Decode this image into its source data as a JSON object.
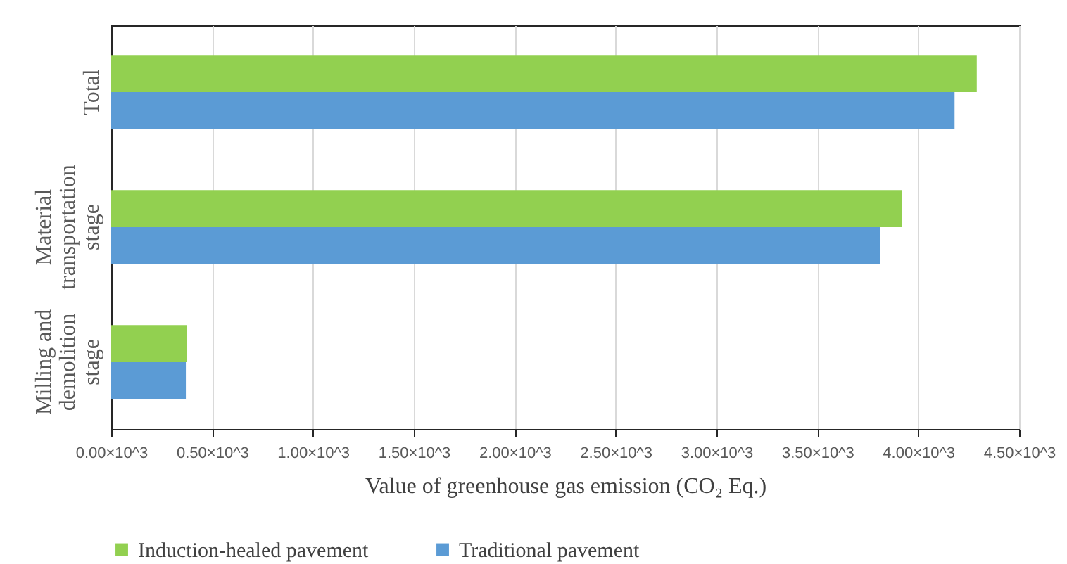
{
  "chart_data": {
    "type": "bar",
    "orientation": "horizontal",
    "xlabel": "Value of greenhouse gas emission (CO₂ Eq.)",
    "categories": [
      "Total",
      "Material transportation stage",
      "Milling and demolition stage"
    ],
    "series": [
      {
        "name": "Induction-healed pavement",
        "color": "#92d050",
        "values": [
          4290,
          3920,
          375
        ]
      },
      {
        "name": "Traditional pavement",
        "color": "#5b9bd5",
        "values": [
          4180,
          3810,
          370
        ]
      }
    ],
    "xlim": [
      0,
      4500
    ],
    "xticks": [
      {
        "value": 0,
        "label": "0.00×10^3"
      },
      {
        "value": 500,
        "label": "0.50×10^3"
      },
      {
        "value": 1000,
        "label": "1.00×10^3"
      },
      {
        "value": 1500,
        "label": "1.50×10^3"
      },
      {
        "value": 2000,
        "label": "2.00×10^3"
      },
      {
        "value": 2500,
        "label": "2.50×10^3"
      },
      {
        "value": 3000,
        "label": "3.00×10^3"
      },
      {
        "value": 3500,
        "label": "3.50×10^3"
      },
      {
        "value": 4000,
        "label": "4.00×10^3"
      },
      {
        "value": 4500,
        "label": "4.50×10^3"
      }
    ],
    "grid": "x",
    "legend": "bottom"
  }
}
